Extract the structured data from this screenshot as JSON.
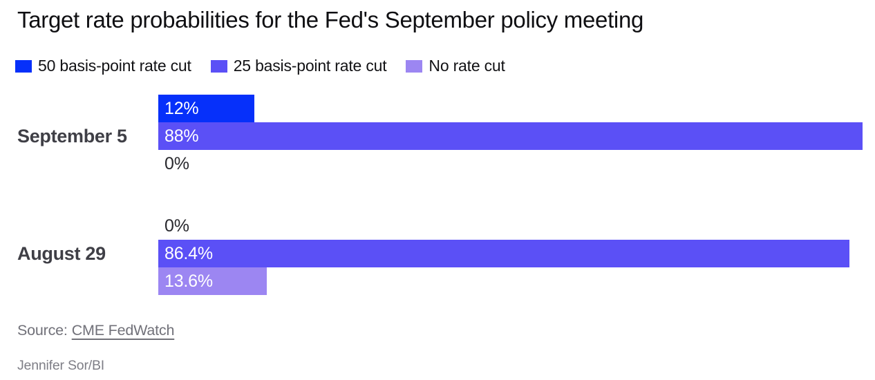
{
  "title": "Target rate probabilities for the Fed's September policy meeting",
  "legend": [
    {
      "label": "50 basis-point rate cut",
      "color": "#0630fa"
    },
    {
      "label": "25 basis-point rate cut",
      "color": "#5b50f6"
    },
    {
      "label": "No rate cut",
      "color": "#9c86f2"
    }
  ],
  "chart_data": {
    "type": "bar",
    "orientation": "horizontal",
    "title": "Target rate probabilities for the Fed's September policy meeting",
    "categories": [
      "September 5",
      "August 29"
    ],
    "series": [
      {
        "name": "50 basis-point rate cut",
        "color": "#0630fa",
        "values": [
          12,
          0
        ]
      },
      {
        "name": "25 basis-point rate cut",
        "color": "#5b50f6",
        "values": [
          88,
          86.4
        ]
      },
      {
        "name": "No rate cut",
        "color": "#9c86f2",
        "values": [
          0,
          13.6
        ]
      }
    ],
    "value_labels": [
      [
        "12%",
        "88%",
        "0%"
      ],
      [
        "0%",
        "86.4%",
        "13.6%"
      ]
    ],
    "unit": "%",
    "xlim": [
      0,
      88
    ],
    "grid": false,
    "legend_position": "top"
  },
  "source": {
    "prefix": "Source:",
    "link_label": "CME FedWatch"
  },
  "byline": "Jennifer Sor/BI"
}
